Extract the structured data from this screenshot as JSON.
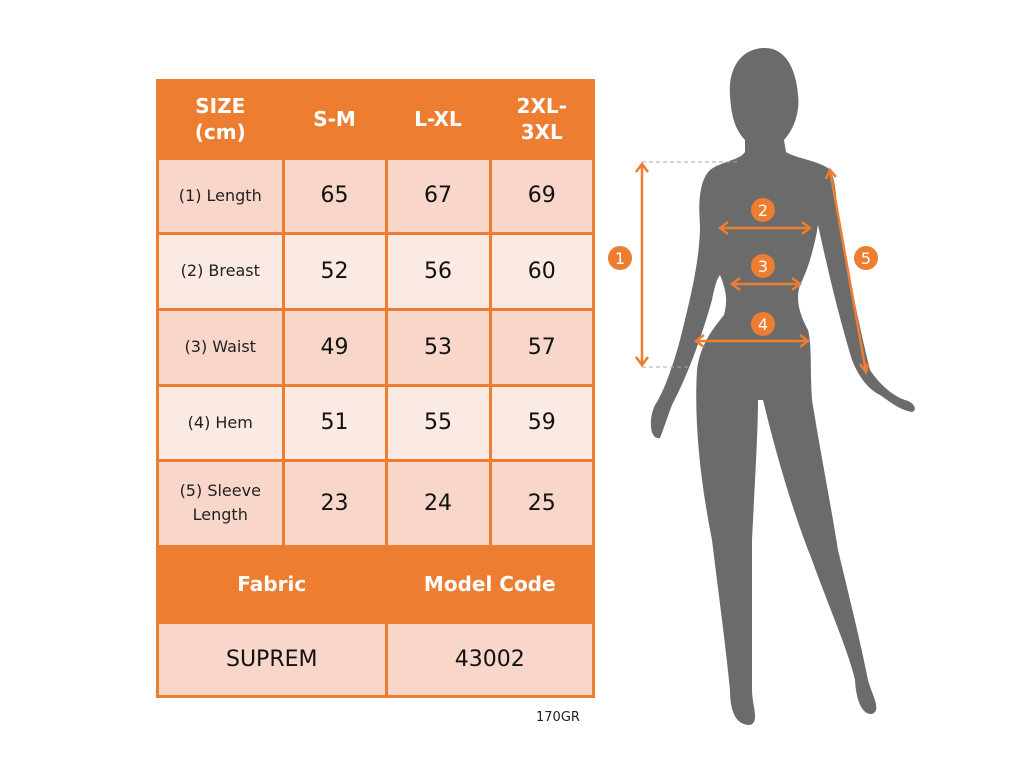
{
  "table": {
    "headers": [
      "SIZE\n(cm)",
      "S-M",
      "L-XL",
      "2XL-\n3XL"
    ],
    "rows": [
      {
        "label": "(1) Length",
        "values": [
          "65",
          "67",
          "69"
        ]
      },
      {
        "label": "(2) Breast",
        "values": [
          "52",
          "56",
          "60"
        ]
      },
      {
        "label": "(3) Waist",
        "values": [
          "49",
          "53",
          "57"
        ]
      },
      {
        "label": "(4) Hem",
        "values": [
          "51",
          "55",
          "59"
        ]
      },
      {
        "label": "(5) Sleeve\nLength",
        "values": [
          "23",
          "24",
          "25"
        ]
      }
    ],
    "footer_headers": [
      "Fabric",
      "Model Code"
    ],
    "footer_values": [
      "SUPREM",
      "43002"
    ]
  },
  "note": "170GR",
  "figure": {
    "markers": [
      "1",
      "2",
      "3",
      "4",
      "5"
    ]
  },
  "colors": {
    "accent": "#ed7d31",
    "silhouette": "#6b6b6b",
    "row_odd": "#f8d6c9",
    "row_even": "#fbe9e3"
  }
}
